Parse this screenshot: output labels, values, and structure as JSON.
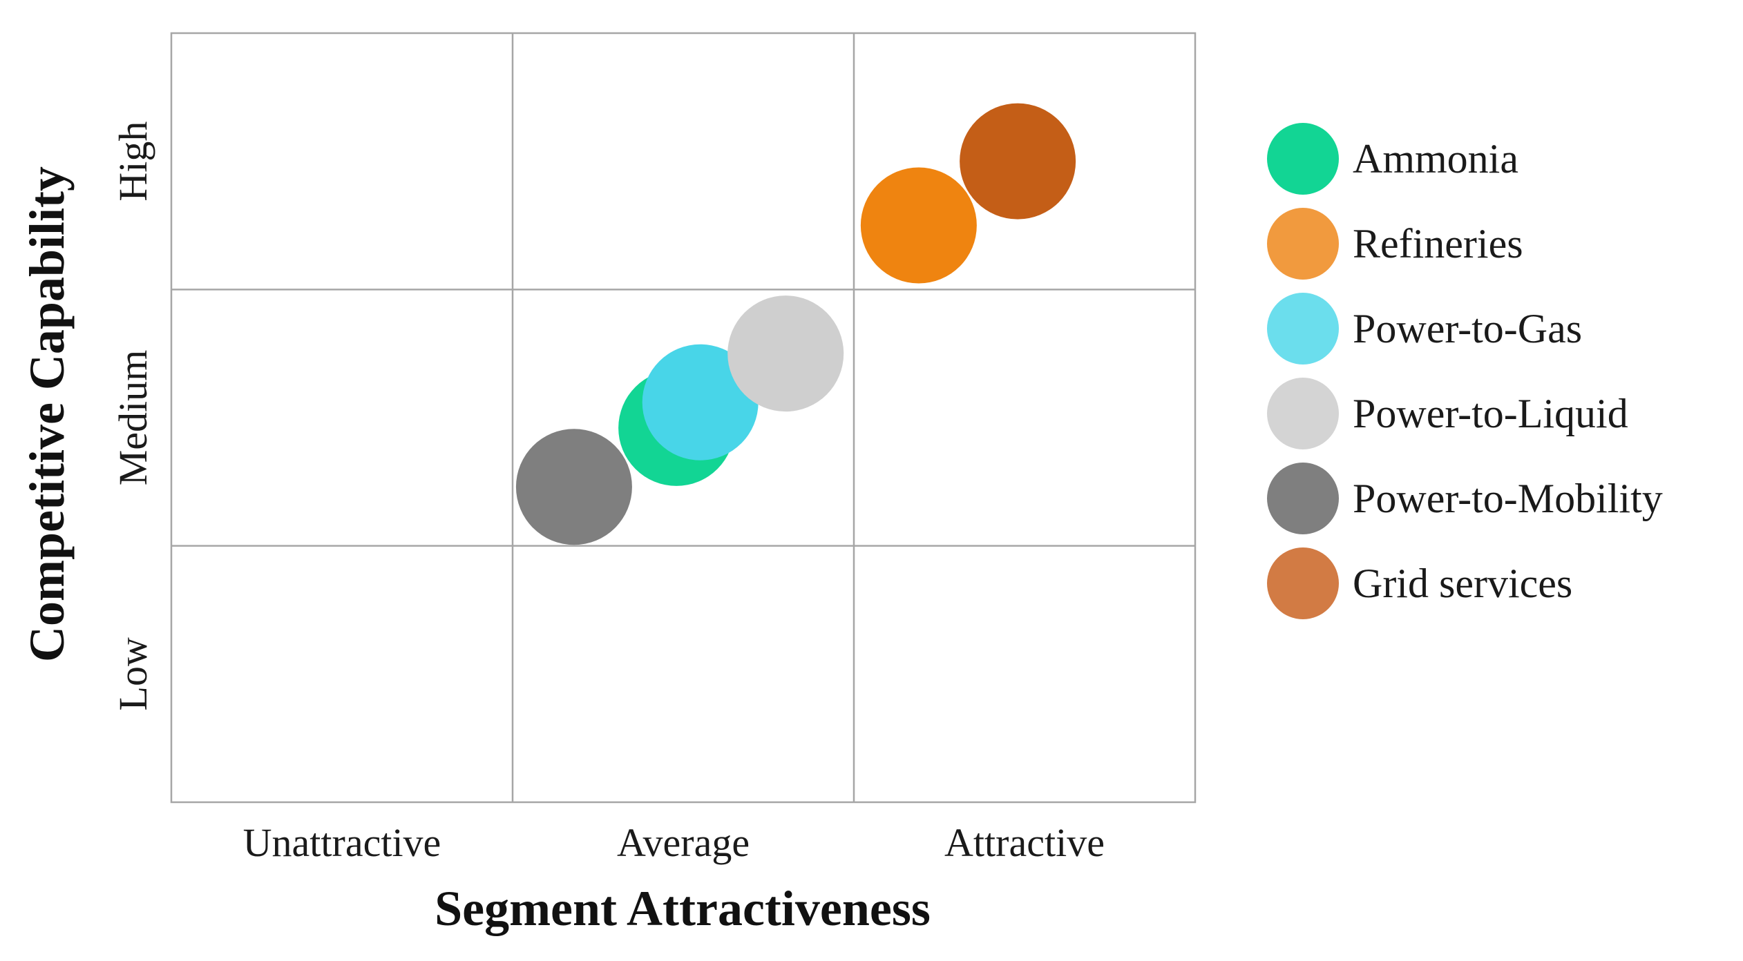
{
  "chart_data": {
    "type": "scatter",
    "subtype": "bubble-matrix",
    "xlabel": "Segment Attractiveness",
    "ylabel": "Competitive Capability",
    "x_categories": [
      "Unattractive",
      "Average",
      "Attractive"
    ],
    "y_categories": [
      "Low",
      "Medium",
      "High"
    ],
    "xlim": [
      0,
      3
    ],
    "ylim": [
      0,
      3
    ],
    "grid": true,
    "legend_position": "right",
    "series": [
      {
        "name": "Ammonia",
        "x": 1.48,
        "y": 1.46,
        "color": "#12d594"
      },
      {
        "name": "Refineries",
        "x": 2.19,
        "y": 2.25,
        "color": "#ef8410"
      },
      {
        "name": "Power-to-Gas",
        "x": 1.55,
        "y": 1.56,
        "color": "#48d5e8"
      },
      {
        "name": "Power-to-Liquid",
        "x": 1.8,
        "y": 1.75,
        "color": "#cfcfcf"
      },
      {
        "name": "Power-to-Mobility",
        "x": 1.18,
        "y": 1.23,
        "color": "#7f7f7f"
      },
      {
        "name": "Grid services",
        "x": 2.48,
        "y": 2.5,
        "color": "#c45e17"
      }
    ],
    "legend_colors": {
      "Ammonia": "#12d594",
      "Refineries": "#f19a3e",
      "Power-to-Gas": "#6bdeed",
      "Power-to-Liquid": "#d4d4d4",
      "Power-to-Mobility": "#7f7f7f",
      "Grid services": "#d27b44"
    },
    "legend_order": [
      "Ammonia",
      "Refineries",
      "Power-to-Gas",
      "Power-to-Liquid",
      "Power-to-Mobility",
      "Grid services"
    ],
    "draw_order": [
      "Ammonia",
      "Power-to-Gas",
      "Power-to-Liquid",
      "Power-to-Mobility",
      "Refineries",
      "Grid services"
    ]
  }
}
